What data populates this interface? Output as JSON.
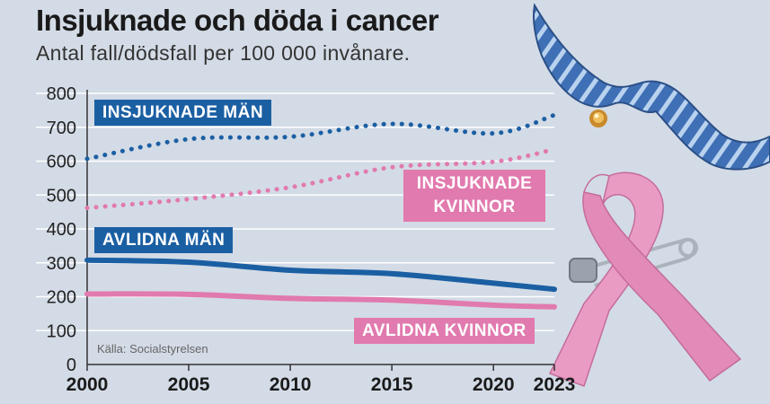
{
  "title": "Insjuknade och döda i cancer",
  "subtitle": "Antal fall/dödsfall per 100 000 invånare.",
  "source": "Källa: Socialstyrelsen",
  "labels": {
    "incidence_men": "INSJUKNADE MÄN",
    "incidence_women_line1": "INSJUKNADE",
    "incidence_women_line2": "KVINNOR",
    "mortality_men": "AVLIDNA MÄN",
    "mortality_women": "AVLIDNA KVINNOR"
  },
  "illustration": [
    "mustache-icon",
    "pink-ribbon-icon",
    "safety-pin-icon",
    "pin-icon"
  ],
  "colors": {
    "background": "#d3dbe6",
    "blue": "#1b5fa3",
    "pink": "#e17aae",
    "grid": "#ffffff",
    "axis": "#333333"
  },
  "chart_data": {
    "type": "line",
    "x": [
      2000,
      2005,
      2010,
      2015,
      2020,
      2023
    ],
    "xticks": [
      "2000",
      "2005",
      "2010",
      "2015",
      "2020",
      "2023"
    ],
    "yticks": [
      "0",
      "100",
      "200",
      "300",
      "400",
      "500",
      "600",
      "700",
      "800"
    ],
    "ylim": [
      0,
      800
    ],
    "xlim": [
      2000,
      2023
    ],
    "grid": true,
    "series": [
      {
        "name": "INSJUKNADE MÄN",
        "values": [
          607,
          665,
          672,
          710,
          682,
          736
        ],
        "color": "#1b5fa3",
        "style": "dotted"
      },
      {
        "name": "INSJUKNADE KVINNOR",
        "values": [
          462,
          488,
          523,
          582,
          598,
          635
        ],
        "color": "#e17aae",
        "style": "dotted"
      },
      {
        "name": "AVLIDNA MÄN",
        "values": [
          308,
          302,
          278,
          268,
          240,
          222
        ],
        "color": "#1b5fa3",
        "style": "solid"
      },
      {
        "name": "AVLIDNA KVINNOR",
        "values": [
          208,
          207,
          195,
          190,
          175,
          170
        ],
        "color": "#e17aae",
        "style": "solid"
      }
    ]
  }
}
